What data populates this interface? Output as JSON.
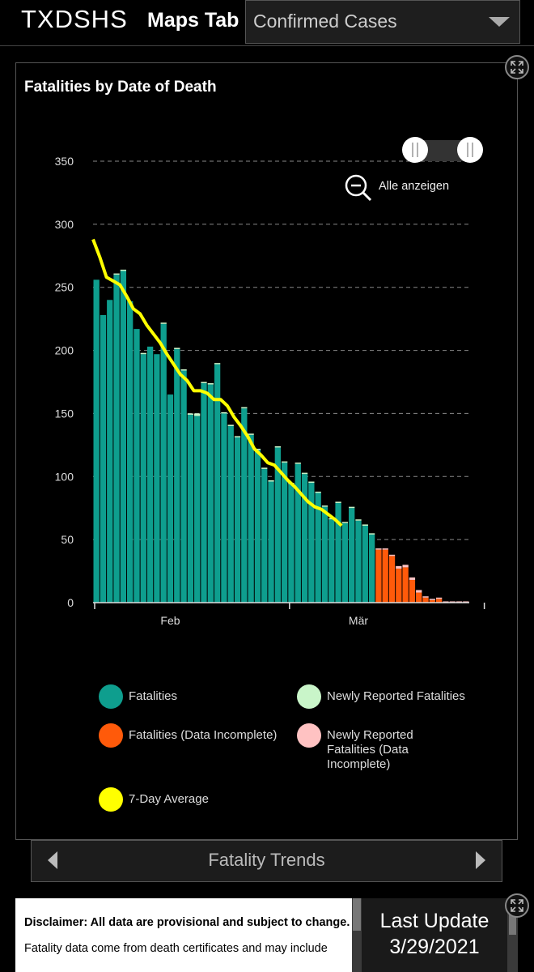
{
  "header": {
    "brand": "TXDSHS",
    "tab": "Maps Tab",
    "dropdown_value": "Confirmed Cases"
  },
  "zoom": {
    "label": "Alle anzeigen"
  },
  "legend": [
    {
      "label": "Fatalities",
      "color": "#0e9e8e"
    },
    {
      "label": "Newly Reported Fatalities",
      "color": "#c9f5c9"
    },
    {
      "label": "Fatalities (Data Incomplete)",
      "color": "#ff5a0a"
    },
    {
      "label": "Newly Reported Fatalities (Data Incomplete)",
      "color": "#ffc2c2"
    },
    {
      "label": "7-Day Average",
      "color": "#ffff00"
    }
  ],
  "pager": {
    "label": "Fatality Trends"
  },
  "disclaimer": {
    "line1": "Disclaimer: All data are provisional and subject to change.",
    "line2": "Fatality data come from death certificates and may include"
  },
  "update": {
    "title": "Last Update",
    "date": "3/29/2021"
  },
  "chart_data": {
    "type": "bar",
    "title": "Fatalities by Date of Death",
    "ylim": [
      0,
      350
    ],
    "yticks": [
      0,
      50,
      100,
      150,
      200,
      250,
      300,
      350
    ],
    "xtick_labels": [
      {
        "label": "Feb",
        "index": 11.5
      },
      {
        "label": "Mär",
        "index": 39.5
      }
    ],
    "series": [
      {
        "name": "Fatalities",
        "values": [
          256,
          228,
          240,
          260,
          263,
          239,
          217,
          197,
          203,
          197,
          221,
          165,
          201,
          184,
          149,
          148,
          174,
          173,
          189,
          150,
          140,
          131,
          154,
          133,
          121,
          106,
          96,
          123,
          111,
          94,
          110,
          102,
          95,
          87,
          76,
          66,
          79,
          63,
          75,
          65,
          61,
          54,
          0,
          0,
          0,
          0,
          0,
          0,
          0,
          0,
          0,
          0,
          0,
          0,
          0,
          0
        ]
      },
      {
        "name": "Newly Reported Fatalities",
        "values": [
          0,
          0,
          0,
          1,
          1,
          0,
          0,
          1,
          0,
          0,
          1,
          0,
          1,
          1,
          1,
          2,
          1,
          1,
          1,
          1,
          1,
          1,
          1,
          1,
          1,
          1,
          1,
          1,
          1,
          1,
          1,
          1,
          1,
          1,
          1,
          1,
          1,
          1,
          1,
          1,
          1,
          1,
          0,
          0,
          0,
          0,
          0,
          0,
          0,
          0,
          0,
          0,
          0,
          0,
          0,
          0
        ]
      },
      {
        "name": "Fatalities (Data Incomplete)",
        "values": [
          0,
          0,
          0,
          0,
          0,
          0,
          0,
          0,
          0,
          0,
          0,
          0,
          0,
          0,
          0,
          0,
          0,
          0,
          0,
          0,
          0,
          0,
          0,
          0,
          0,
          0,
          0,
          0,
          0,
          0,
          0,
          0,
          0,
          0,
          0,
          0,
          0,
          0,
          0,
          0,
          0,
          0,
          42,
          42,
          37,
          27,
          28,
          18,
          8,
          4,
          2,
          3,
          0,
          0,
          0,
          0
        ]
      },
      {
        "name": "Newly Reported Fatalities (Data Incomplete)",
        "values": [
          0,
          0,
          0,
          0,
          0,
          0,
          0,
          0,
          0,
          0,
          0,
          0,
          0,
          0,
          0,
          0,
          0,
          0,
          0,
          0,
          0,
          0,
          0,
          0,
          0,
          0,
          0,
          0,
          0,
          0,
          0,
          0,
          0,
          0,
          0,
          0,
          0,
          0,
          0,
          0,
          0,
          0,
          1,
          1,
          1,
          2,
          2,
          2,
          2,
          1,
          1,
          1,
          1,
          1,
          1,
          1
        ]
      },
      {
        "name": "7-Day Average",
        "values": [
          288,
          274,
          258,
          255,
          252,
          243,
          233,
          229,
          220,
          213,
          206,
          197,
          189,
          181,
          176,
          168,
          168,
          166,
          161,
          161,
          156,
          147,
          140,
          132,
          122,
          117,
          111,
          109,
          103,
          97,
          92,
          86,
          80,
          76,
          74,
          70,
          66,
          61,
          null,
          null,
          null,
          null,
          null,
          null,
          null,
          null,
          null,
          null,
          null,
          null,
          null,
          null,
          null,
          null,
          null,
          null
        ]
      }
    ]
  }
}
